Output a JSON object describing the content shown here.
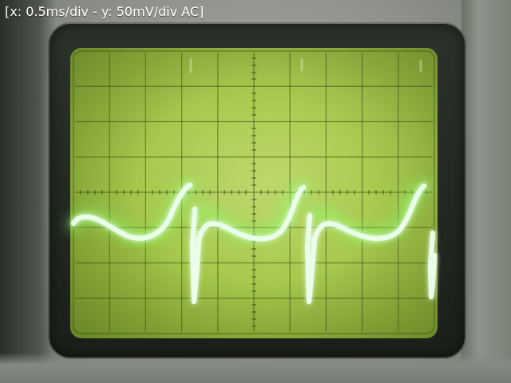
{
  "caption": "[x: 0.5ms/div - y: 50mV/div AC]",
  "colors": {
    "trace": "#e9ffe9",
    "trace_glow": "#7dff66",
    "grid": "#2f4a10",
    "screen": "#a6c94d"
  }
}
